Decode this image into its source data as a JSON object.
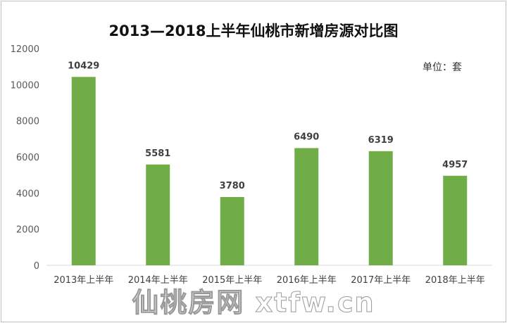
{
  "chart_data": {
    "type": "bar",
    "title": "2013—2018上半年仙桃市新增房源对比图",
    "unit_label": "单位：套",
    "categories": [
      "2013年上半年",
      "2014年上半年",
      "2015年上半年",
      "2016年上半年",
      "2017年上半年",
      "2018年上半年"
    ],
    "values": [
      10429,
      5581,
      3780,
      6490,
      6319,
      4957
    ],
    "ylim": [
      0,
      12000
    ],
    "yticks": [
      0,
      2000,
      4000,
      6000,
      8000,
      10000,
      12000
    ],
    "xlabel": "",
    "ylabel": "",
    "grid": false,
    "bar_color": "#70ad47",
    "watermark": "仙桃房网 xtfw.cn"
  }
}
